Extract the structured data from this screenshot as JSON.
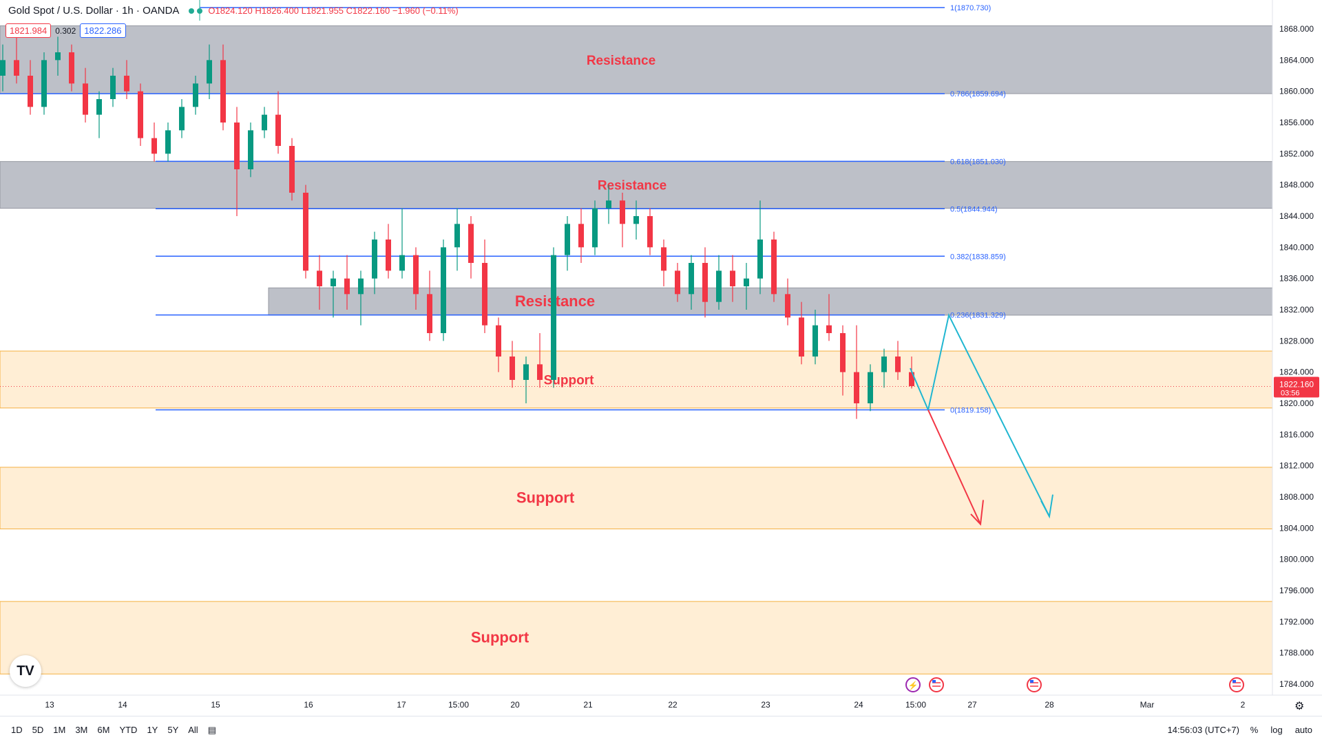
{
  "header": {
    "symbol": "Gold Spot / U.S. Dollar · 1h · OANDA",
    "ohlc": "O1824.120 H1826.400 L1821.955 C1822.160 −1.960 (−0.11%)"
  },
  "prices": {
    "sell": "1821.984",
    "spread": "0.302",
    "buy": "1822.286"
  },
  "chart_data": {
    "type": "candlestick",
    "y_axis": {
      "range": [
        1782,
        1874
      ],
      "ticks": [
        "1868.000",
        "1864.000",
        "1860.000",
        "1856.000",
        "1852.000",
        "1848.000",
        "1844.000",
        "1840.000",
        "1836.000",
        "1832.000",
        "1828.000",
        "1824.000",
        "1820.000",
        "1816.000",
        "1812.000",
        "1808.000",
        "1804.000",
        "1800.000",
        "1796.000",
        "1792.000",
        "1788.000",
        "1784.000"
      ],
      "tick_values": [
        1868,
        1864,
        1860,
        1856,
        1852,
        1848,
        1844,
        1840,
        1836,
        1832,
        1828,
        1824,
        1820,
        1816,
        1812,
        1808,
        1804,
        1800,
        1796,
        1792,
        1788,
        1784
      ]
    },
    "x_axis": {
      "labels": [
        "13",
        "14",
        "15",
        "16",
        "17",
        "15:00",
        "20",
        "21",
        "22",
        "23",
        "24",
        "15:00",
        "27",
        "28",
        "Mar",
        "2"
      ]
    },
    "last_price": {
      "value": 1822.16,
      "label": "1822.160",
      "countdown": "03:56"
    },
    "zones": [
      {
        "label": "Resistance",
        "kind": "resistance",
        "top": 1868.4,
        "bottom": 1859.7
      },
      {
        "label": "Resistance",
        "kind": "resistance",
        "top": 1851.0,
        "bottom": 1845.0
      },
      {
        "label": "Resistance",
        "kind": "resistance",
        "top": 1834.8,
        "bottom": 1831.3
      },
      {
        "label": "Support",
        "kind": "support",
        "top": 1826.7,
        "bottom": 1819.4
      },
      {
        "label": "Support",
        "kind": "support",
        "top": 1811.8,
        "bottom": 1803.9
      },
      {
        "label": "Support",
        "kind": "support",
        "top": 1794.6,
        "bottom": 1785.3
      }
    ],
    "fib_levels": [
      {
        "label": "1(1870.730)",
        "value": 1870.73
      },
      {
        "label": "0.786(1859.694)",
        "value": 1859.694
      },
      {
        "label": "0.618(1851.030)",
        "value": 1851.03
      },
      {
        "label": "0.5(1844.944)",
        "value": 1844.944
      },
      {
        "label": "0.382(1838.859)",
        "value": 1838.859
      },
      {
        "label": "0.236(1831.329)",
        "value": 1831.329
      },
      {
        "label": "0(1819.158)",
        "value": 1819.158
      }
    ],
    "candles": [
      [
        1862,
        1866,
        1860,
        1864
      ],
      [
        1864,
        1868,
        1861,
        1862
      ],
      [
        1862,
        1864,
        1857,
        1858
      ],
      [
        1858,
        1865,
        1857,
        1864
      ],
      [
        1864,
        1867,
        1862,
        1865
      ],
      [
        1865,
        1866,
        1860,
        1861
      ],
      [
        1861,
        1863,
        1856,
        1857
      ],
      [
        1857,
        1860,
        1854,
        1859
      ],
      [
        1859,
        1863,
        1858,
        1862
      ],
      [
        1862,
        1864,
        1859,
        1860
      ],
      [
        1860,
        1861,
        1853,
        1854
      ],
      [
        1854,
        1856,
        1851,
        1852
      ],
      [
        1852,
        1856,
        1851,
        1855
      ],
      [
        1855,
        1859,
        1854,
        1858
      ],
      [
        1858,
        1862,
        1857,
        1861
      ],
      [
        1861,
        1866,
        1859,
        1864
      ],
      [
        1864,
        1866,
        1855,
        1856
      ],
      [
        1856,
        1858,
        1844,
        1850
      ],
      [
        1850,
        1856,
        1849,
        1855
      ],
      [
        1855,
        1858,
        1854,
        1857
      ],
      [
        1857,
        1860,
        1852,
        1853
      ],
      [
        1853,
        1854,
        1846,
        1847
      ],
      [
        1847,
        1848,
        1836,
        1837
      ],
      [
        1837,
        1839,
        1832,
        1835
      ],
      [
        1835,
        1837,
        1831,
        1836
      ],
      [
        1836,
        1839,
        1832,
        1834
      ],
      [
        1834,
        1837,
        1830,
        1836
      ],
      [
        1836,
        1842,
        1834,
        1841
      ],
      [
        1841,
        1843,
        1836,
        1837
      ],
      [
        1837,
        1845,
        1836,
        1839
      ],
      [
        1839,
        1840,
        1832,
        1834
      ],
      [
        1834,
        1837,
        1828,
        1829
      ],
      [
        1829,
        1841,
        1828,
        1840
      ],
      [
        1840,
        1845,
        1837,
        1843
      ],
      [
        1843,
        1844,
        1836,
        1838
      ],
      [
        1838,
        1841,
        1829,
        1830
      ],
      [
        1830,
        1831,
        1824,
        1826
      ],
      [
        1826,
        1828,
        1822,
        1823
      ],
      [
        1823,
        1826,
        1820,
        1825
      ],
      [
        1825,
        1829,
        1822,
        1823
      ],
      [
        1823,
        1840,
        1822,
        1839
      ],
      [
        1839,
        1844,
        1837,
        1843
      ],
      [
        1843,
        1845,
        1838,
        1840
      ],
      [
        1840,
        1846,
        1839,
        1845
      ],
      [
        1845,
        1848,
        1843,
        1846
      ],
      [
        1846,
        1847,
        1840,
        1843
      ],
      [
        1843,
        1846,
        1841,
        1844
      ],
      [
        1844,
        1845,
        1839,
        1840
      ],
      [
        1840,
        1841,
        1835,
        1837
      ],
      [
        1837,
        1838,
        1833,
        1834
      ],
      [
        1834,
        1839,
        1832,
        1838
      ],
      [
        1838,
        1840,
        1831,
        1833
      ],
      [
        1833,
        1839,
        1832,
        1837
      ],
      [
        1837,
        1839,
        1833,
        1835
      ],
      [
        1835,
        1838,
        1832,
        1836
      ],
      [
        1836,
        1846,
        1834,
        1841
      ],
      [
        1841,
        1842,
        1833,
        1834
      ],
      [
        1834,
        1836,
        1830,
        1831
      ],
      [
        1831,
        1833,
        1825,
        1826
      ],
      [
        1826,
        1832,
        1825,
        1830
      ],
      [
        1830,
        1834,
        1828,
        1829
      ],
      [
        1829,
        1830,
        1821,
        1824
      ],
      [
        1824,
        1830,
        1818,
        1820
      ],
      [
        1820,
        1825,
        1819,
        1824
      ],
      [
        1824,
        1827,
        1822,
        1826
      ],
      [
        1826,
        1828,
        1823,
        1824
      ],
      [
        1824,
        1826,
        1821.9,
        1822.2
      ]
    ]
  },
  "bottom": {
    "timeframes": [
      "1D",
      "5D",
      "1M",
      "3M",
      "6M",
      "YTD",
      "1Y",
      "5Y",
      "All"
    ],
    "time": "14:56:03 (UTC+7)",
    "tools": [
      "%",
      "log",
      "auto"
    ]
  }
}
